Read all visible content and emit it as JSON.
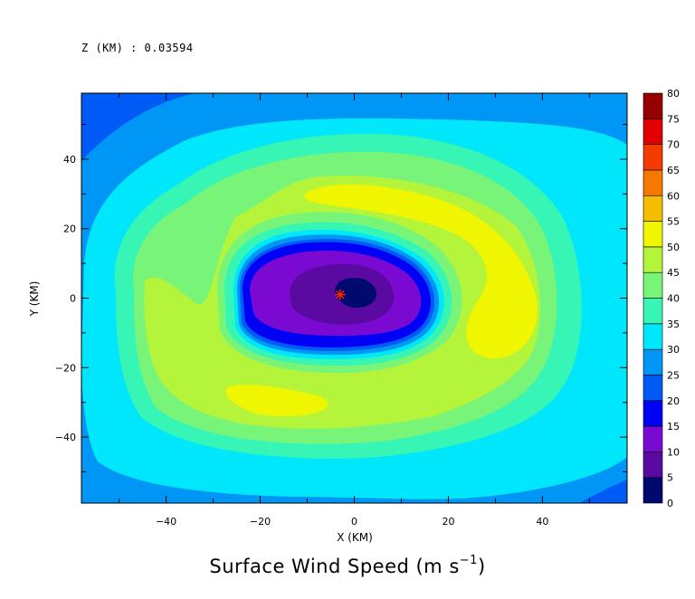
{
  "header": {
    "z_label": "Z (KM) : 0.03594"
  },
  "chart_data": {
    "type": "heatmap",
    "title": "Surface Wind Speed (m s",
    "title_sup": "−1",
    "title_end": ")",
    "xlabel": "X (KM)",
    "ylabel": "Y (KM)",
    "xlim": [
      -58,
      58
    ],
    "ylim": [
      -59,
      59
    ],
    "x_ticks": [
      -40,
      -20,
      0,
      20,
      40
    ],
    "y_ticks": [
      40,
      20,
      0,
      -20,
      -40
    ],
    "colorbar": {
      "levels": [
        0,
        5,
        10,
        15,
        20,
        25,
        30,
        35,
        40,
        45,
        50,
        55,
        60,
        65,
        70,
        75,
        80
      ],
      "colors": [
        "#000a6e",
        "#5a0aa0",
        "#7a0ad2",
        "#0000f5",
        "#005af5",
        "#0096f5",
        "#00e6fa",
        "#37f5b4",
        "#78f578",
        "#b4f53c",
        "#f0f500",
        "#f5be00",
        "#f57800",
        "#f53c00",
        "#e10000",
        "#960000"
      ]
    },
    "contours": [
      {
        "level": 20,
        "color": "#005af5"
      },
      {
        "level": 25,
        "color": "#0096f5"
      },
      {
        "level": 30,
        "color": "#00e6fa"
      },
      {
        "level": 35,
        "color": "#37f5b4"
      },
      {
        "level": 40,
        "color": "#78f578"
      },
      {
        "level": 45,
        "color": "#b4f53c"
      },
      {
        "level": 50,
        "color": "#f0f500"
      },
      {
        "level": 35,
        "color": "#37f5b4"
      },
      {
        "level": 30,
        "color": "#00e6fa"
      },
      {
        "level": 25,
        "color": "#0096f5"
      },
      {
        "level": 20,
        "color": "#005af5"
      },
      {
        "level": 15,
        "color": "#0000f5"
      },
      {
        "level": 10,
        "color": "#7a0ad2"
      },
      {
        "level": 5,
        "color": "#5a0aa0"
      },
      {
        "level": 0,
        "color": "#000a6e"
      }
    ],
    "center_marker": {
      "x": -3,
      "y": 1,
      "color": "#ff2000"
    }
  }
}
